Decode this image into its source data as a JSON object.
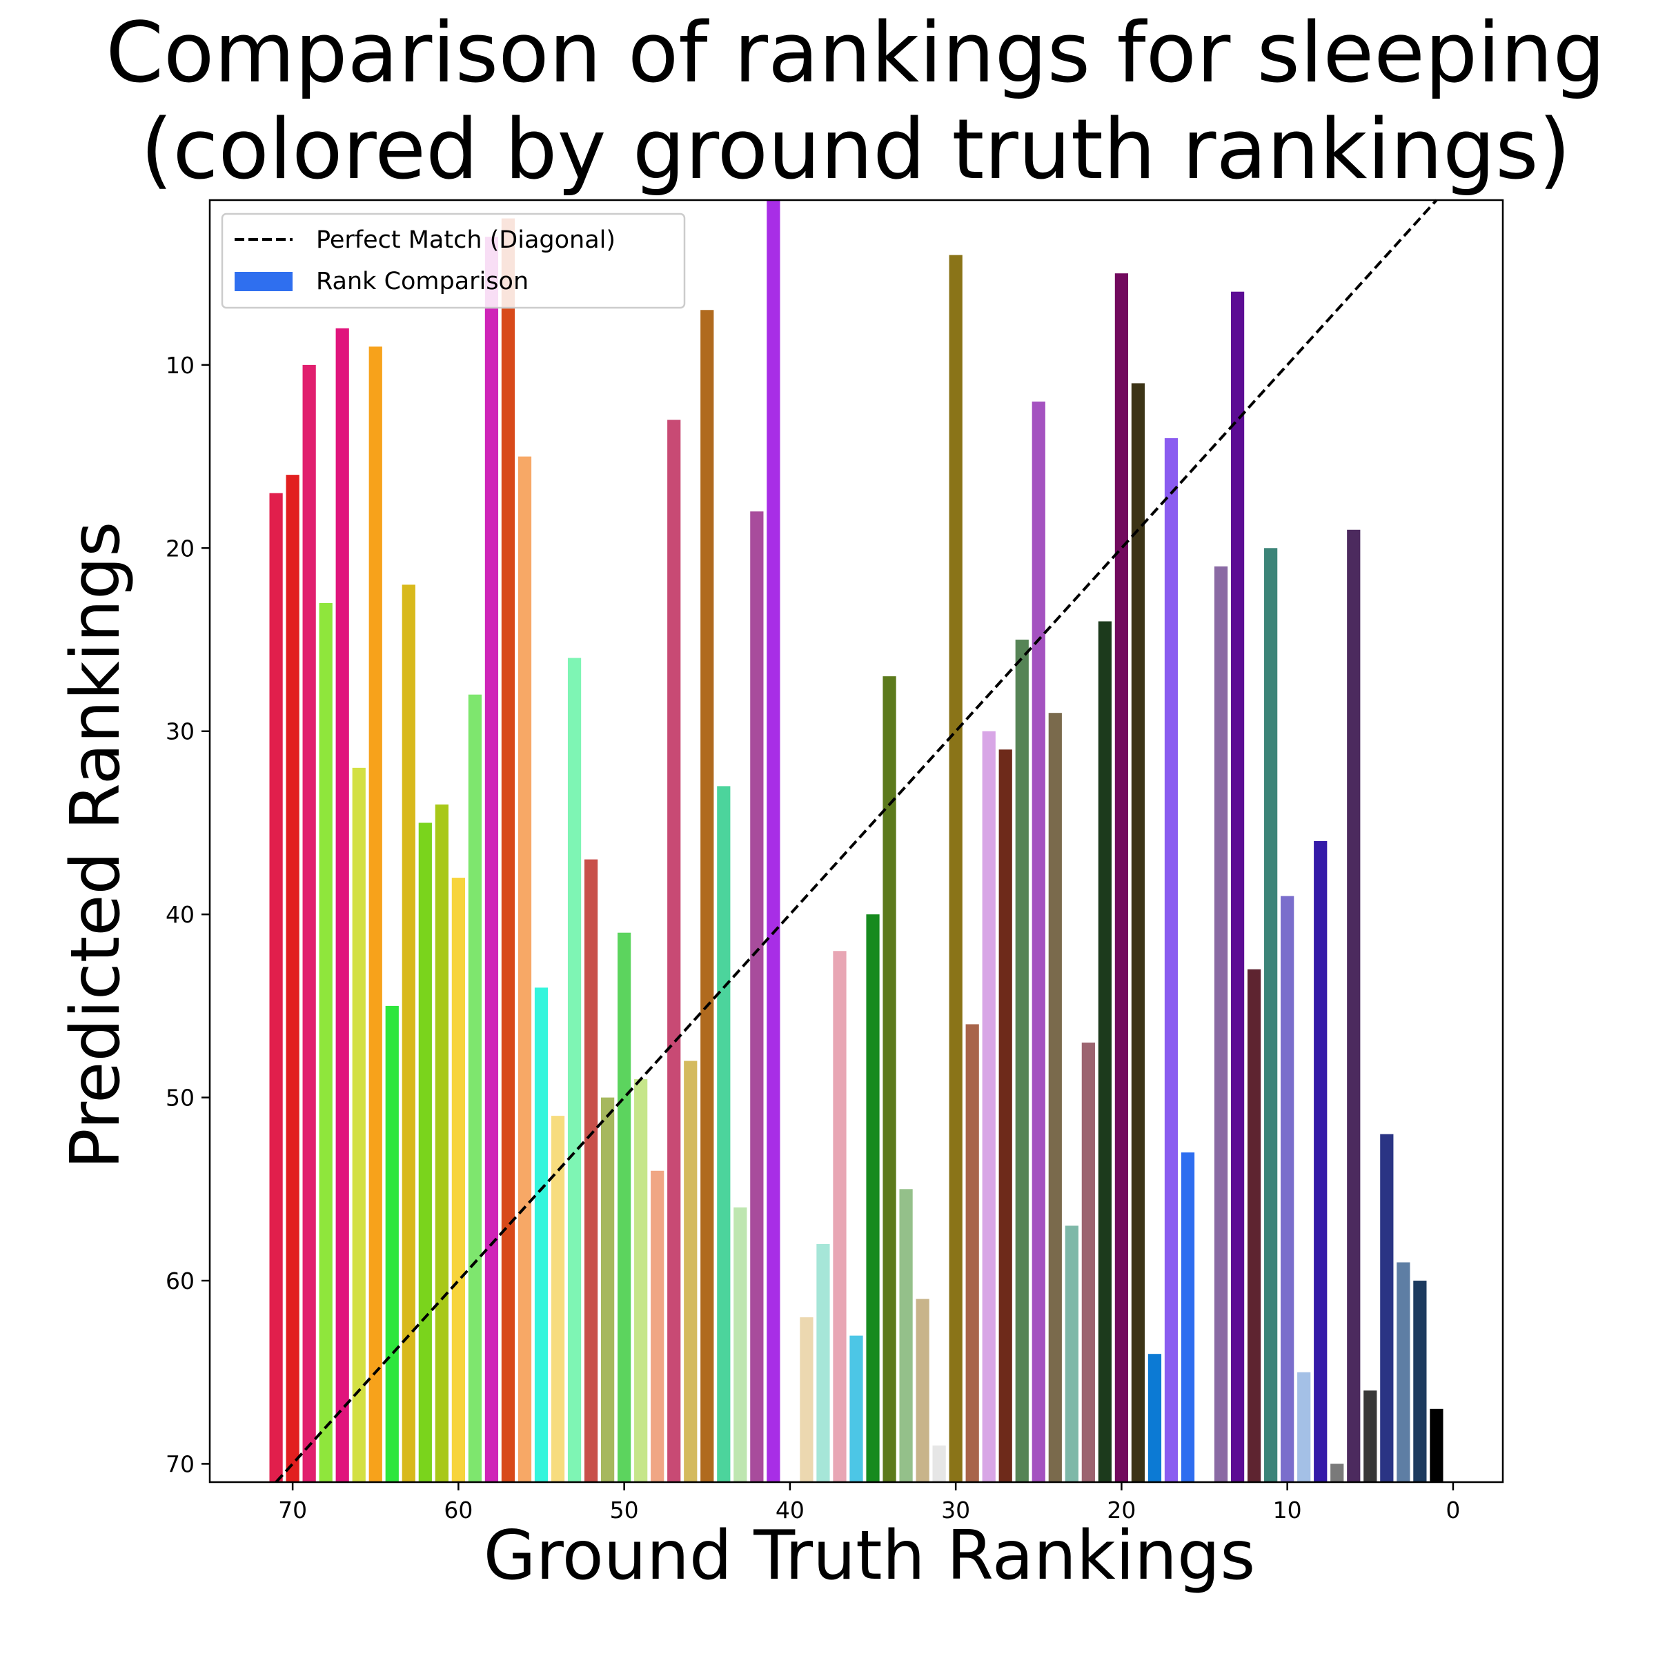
{
  "chart_data": {
    "type": "bar",
    "title_lines": [
      "Comparison of rankings for sleeping",
      "(colored by ground truth rankings)"
    ],
    "xlabel": "Ground Truth Rankings",
    "ylabel": "Predicted Rankings",
    "xlim": [
      75,
      -3
    ],
    "ylim": [
      71,
      1
    ],
    "x_reversed": true,
    "y_inverted": true,
    "xticks": [
      70,
      60,
      50,
      40,
      30,
      20,
      10,
      0
    ],
    "yticks": [
      10,
      20,
      30,
      40,
      50,
      60,
      70
    ],
    "grid": false,
    "legend_position": "top-left",
    "legend": [
      {
        "label": "Perfect Match (Diagonal)",
        "kind": "dashed-line",
        "color": "#000000"
      },
      {
        "label": "Rank Comparison",
        "kind": "patch",
        "color": "#2f6fef"
      }
    ],
    "diagonal": {
      "from": [
        71,
        71
      ],
      "to": [
        1,
        1
      ],
      "style": "dashed",
      "color": "#000000"
    },
    "series": [
      {
        "points": [
          {
            "x": 71,
            "y": 17,
            "color": "#e11f4c"
          },
          {
            "x": 70,
            "y": 16,
            "color": "#e21f1f"
          },
          {
            "x": 69,
            "y": 10,
            "color": "#e11f6e"
          },
          {
            "x": 68,
            "y": 23,
            "color": "#8fe63c"
          },
          {
            "x": 67,
            "y": 8,
            "color": "#e0147c"
          },
          {
            "x": 66,
            "y": 32,
            "color": "#d3e043"
          },
          {
            "x": 65,
            "y": 9,
            "color": "#f7a21b"
          },
          {
            "x": 64,
            "y": 45,
            "color": "#2ee63c"
          },
          {
            "x": 63,
            "y": 22,
            "color": "#d8b91c"
          },
          {
            "x": 62,
            "y": 35,
            "color": "#7ad41c"
          },
          {
            "x": 61,
            "y": 34,
            "color": "#a8c818"
          },
          {
            "x": 60,
            "y": 38,
            "color": "#f7d43c"
          },
          {
            "x": 59,
            "y": 28,
            "color": "#7ee66e"
          },
          {
            "x": 58,
            "y": 3,
            "color": "#cf24b8"
          },
          {
            "x": 57,
            "y": 2,
            "color": "#d84a1a"
          },
          {
            "x": 56,
            "y": 15,
            "color": "#f7a866"
          },
          {
            "x": 55,
            "y": 44,
            "color": "#34f5dc"
          },
          {
            "x": 54,
            "y": 51,
            "color": "#f7dc7e"
          },
          {
            "x": 53,
            "y": 26,
            "color": "#7ef5b4"
          },
          {
            "x": 52,
            "y": 37,
            "color": "#c8504a"
          },
          {
            "x": 51,
            "y": 50,
            "color": "#a6b85e"
          },
          {
            "x": 50,
            "y": 41,
            "color": "#5cd45e"
          },
          {
            "x": 49,
            "y": 49,
            "color": "#c6e68a"
          },
          {
            "x": 48,
            "y": 54,
            "color": "#f0a684"
          },
          {
            "x": 47,
            "y": 13,
            "color": "#c84a74"
          },
          {
            "x": 46,
            "y": 48,
            "color": "#d4ba5e"
          },
          {
            "x": 45,
            "y": 7,
            "color": "#b06a1e"
          },
          {
            "x": 44,
            "y": 33,
            "color": "#4cd49c"
          },
          {
            "x": 43,
            "y": 56,
            "color": "#bee6b0"
          },
          {
            "x": 42,
            "y": 18,
            "color": "#a84c9c"
          },
          {
            "x": 41,
            "y": 1,
            "color": "#a82ee6"
          },
          {
            "x": 39,
            "y": 62,
            "color": "#ecd8b0"
          },
          {
            "x": 38,
            "y": 58,
            "color": "#a6e6d8"
          },
          {
            "x": 37,
            "y": 42,
            "color": "#e8a6b4"
          },
          {
            "x": 36,
            "y": 63,
            "color": "#4cc6e6"
          },
          {
            "x": 35,
            "y": 40,
            "color": "#168a1e"
          },
          {
            "x": 34,
            "y": 27,
            "color": "#5c7a1c"
          },
          {
            "x": 33,
            "y": 55,
            "color": "#94c08a"
          },
          {
            "x": 32,
            "y": 61,
            "color": "#c8b48a"
          },
          {
            "x": 31,
            "y": 69,
            "color": "#e6e6e6"
          },
          {
            "x": 30,
            "y": 4,
            "color": "#8a7418"
          },
          {
            "x": 29,
            "y": 46,
            "color": "#a8644a"
          },
          {
            "x": 28,
            "y": 30,
            "color": "#d8a6e6"
          },
          {
            "x": 27,
            "y": 31,
            "color": "#6e2a1a"
          },
          {
            "x": 26,
            "y": 25,
            "color": "#568456"
          },
          {
            "x": 25,
            "y": 12,
            "color": "#a452c0"
          },
          {
            "x": 24,
            "y": 29,
            "color": "#7a6a4c"
          },
          {
            "x": 23,
            "y": 57,
            "color": "#7eb8a8"
          },
          {
            "x": 22,
            "y": 47,
            "color": "#9c6470"
          },
          {
            "x": 21,
            "y": 24,
            "color": "#1c3a1c"
          },
          {
            "x": 20,
            "y": 5,
            "color": "#720a5e"
          },
          {
            "x": 19,
            "y": 11,
            "color": "#3c3416"
          },
          {
            "x": 18,
            "y": 64,
            "color": "#0c7ad4"
          },
          {
            "x": 17,
            "y": 14,
            "color": "#8a5cf0"
          },
          {
            "x": 16,
            "y": 53,
            "color": "#2e6ef0"
          },
          {
            "x": 14,
            "y": 21,
            "color": "#8a6aa4"
          },
          {
            "x": 13,
            "y": 6,
            "color": "#5c0c94"
          },
          {
            "x": 12,
            "y": 43,
            "color": "#5e2430"
          },
          {
            "x": 11,
            "y": 20,
            "color": "#3c8478"
          },
          {
            "x": 10,
            "y": 39,
            "color": "#7a6ecc"
          },
          {
            "x": 9,
            "y": 65,
            "color": "#a4c0e6"
          },
          {
            "x": 8,
            "y": 36,
            "color": "#341aa8"
          },
          {
            "x": 7,
            "y": 70,
            "color": "#7a7a7a"
          },
          {
            "x": 6,
            "y": 19,
            "color": "#4c2a5e"
          },
          {
            "x": 5,
            "y": 66,
            "color": "#383838"
          },
          {
            "x": 4,
            "y": 52,
            "color": "#2a3484"
          },
          {
            "x": 3,
            "y": 59,
            "color": "#5e7ea4"
          },
          {
            "x": 2,
            "y": 60,
            "color": "#1c3a5e"
          },
          {
            "x": 1,
            "y": 67,
            "color": "#000000"
          }
        ]
      }
    ]
  }
}
